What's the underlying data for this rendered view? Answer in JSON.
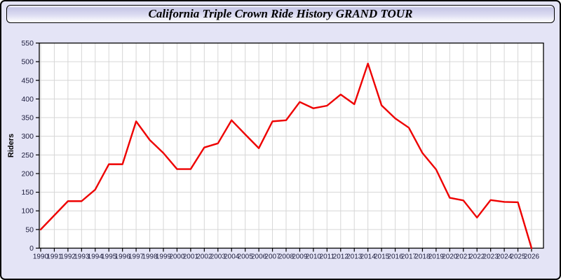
{
  "window": {
    "title": "California Triple Crown Ride History GRAND TOUR"
  },
  "colors": {
    "background": "#e4e4f6",
    "plot_background": "#ffffff",
    "grid": "#d6d6d6",
    "axis": "#000000",
    "tick_text": "#1c1c3c",
    "line": "#ee0000"
  },
  "chart_data": {
    "type": "line",
    "title": "California Triple Crown Ride History GRAND TOUR",
    "xlabel": "",
    "ylabel": "Riders",
    "ylim": [
      0,
      550
    ],
    "ytick_step": 50,
    "grid": true,
    "legend": "none",
    "x": [
      1990,
      1991,
      1992,
      1993,
      1994,
      1995,
      1996,
      1997,
      1998,
      1999,
      2000,
      2001,
      2002,
      2003,
      2004,
      2005,
      2006,
      2007,
      2008,
      2009,
      2010,
      2011,
      2012,
      2013,
      2014,
      2015,
      2016,
      2017,
      2018,
      2019,
      2020,
      2021,
      2022,
      2023,
      2024,
      2025,
      2026
    ],
    "series": [
      {
        "name": "Riders",
        "values": [
          50,
          88,
          126,
          126,
          157,
          225,
          225,
          340,
          290,
          255,
          212,
          212,
          270,
          281,
          343,
          305,
          268,
          340,
          343,
          392,
          375,
          382,
          412,
          386,
          495,
          383,
          348,
          323,
          255,
          211,
          135,
          128,
          82,
          129,
          124,
          123,
          0
        ]
      }
    ]
  }
}
